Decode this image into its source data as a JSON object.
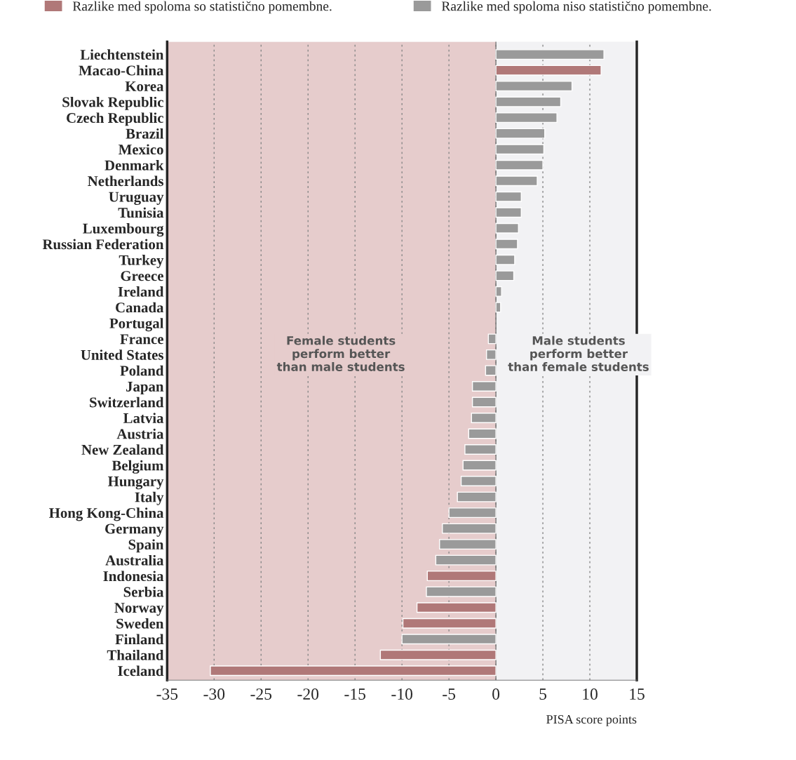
{
  "chart_data": {
    "type": "bar",
    "orientation": "horizontal",
    "categories": [
      "Liechtenstein",
      "Macao-China",
      "Korea",
      "Slovak Republic",
      "Czech Republic",
      "Brazil",
      "Mexico",
      "Denmark",
      "Netherlands",
      "Uruguay",
      "Tunisia",
      "Luxembourg",
      "Russian Federation",
      "Turkey",
      "Greece",
      "Ireland",
      "Canada",
      "Portugal",
      "France",
      "United States",
      "Poland",
      "Japan",
      "Switzerland",
      "Latvia",
      "Austria",
      "New Zealand",
      "Belgium",
      "Hungary",
      "Italy",
      "Hong Kong-China",
      "Germany",
      "Spain",
      "Australia",
      "Indonesia",
      "Serbia",
      "Norway",
      "Sweden",
      "Finland",
      "Thailand",
      "Iceland"
    ],
    "series": [
      {
        "name": "Razlike med spoloma so statistično pomembne.",
        "color": "#b07878",
        "values": [
          null,
          11.2,
          null,
          null,
          null,
          null,
          null,
          null,
          null,
          null,
          null,
          null,
          null,
          null,
          null,
          null,
          null,
          null,
          null,
          null,
          null,
          null,
          null,
          null,
          null,
          null,
          null,
          null,
          null,
          null,
          null,
          null,
          null,
          -7.3,
          null,
          -8.4,
          -9.9,
          null,
          -12.3,
          -30.4
        ]
      },
      {
        "name": "Razlike med spoloma niso statistično pomembne.",
        "color": "#9a9a9a",
        "values": [
          11.5,
          null,
          8.1,
          6.9,
          6.5,
          5.2,
          5.1,
          5.0,
          4.4,
          2.7,
          2.7,
          2.4,
          2.3,
          2.0,
          1.9,
          0.6,
          0.5,
          null,
          -0.8,
          -1.0,
          -1.1,
          -2.5,
          -2.5,
          -2.6,
          -2.9,
          -3.3,
          -3.5,
          -3.7,
          -4.1,
          -5.0,
          -5.7,
          -6.0,
          -6.4,
          null,
          -7.4,
          null,
          null,
          -10.0,
          null,
          null
        ]
      }
    ],
    "xlim": [
      -35,
      15
    ],
    "xticks": [
      -35,
      -30,
      -25,
      -20,
      -15,
      -10,
      -5,
      0,
      5,
      10,
      15
    ],
    "xlabel": "PISA score points",
    "annotations": [
      "Female students\nperform better\nthan male students",
      "Male students\nperform better\nthan female students"
    ],
    "bands": [
      {
        "axis": "x",
        "from": -35,
        "to": 0,
        "color": "#e6cccc"
      }
    ],
    "ref_lines": [
      {
        "axis": "x",
        "value": 0,
        "color": "#777777"
      }
    ],
    "grid": "x",
    "legend": "top"
  }
}
